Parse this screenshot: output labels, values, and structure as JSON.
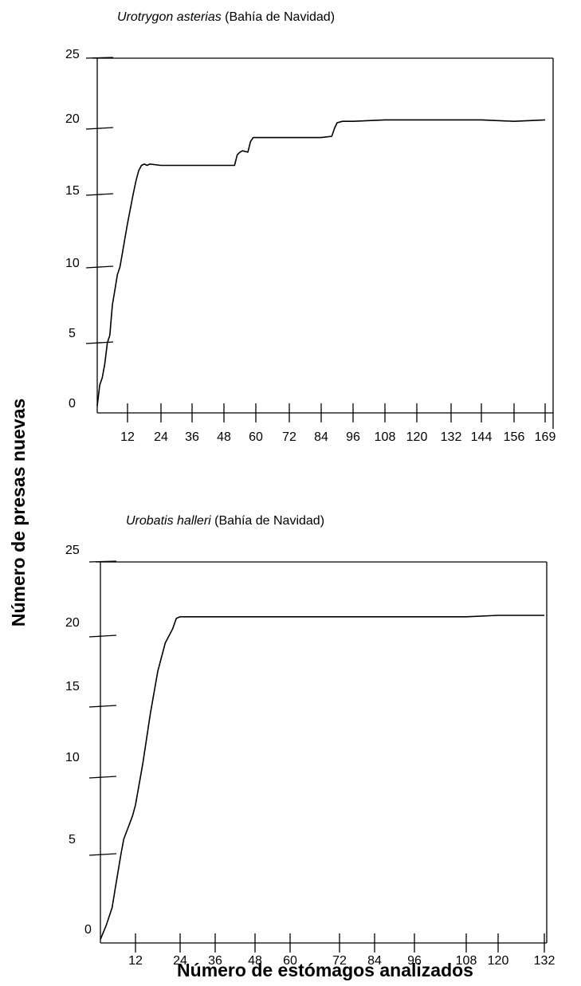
{
  "ylabel": "Número de presas nuevas",
  "xlabel": "Número de estómagos analizados",
  "chart_data": [
    {
      "type": "line",
      "title_species": "Urotrygon asterias",
      "title_location": " (Bahía de Navidad)",
      "ylim": [
        0,
        25
      ],
      "yticks": [
        "0",
        "5",
        "10",
        "15",
        "20",
        "25"
      ],
      "xticks": [
        "12",
        "24",
        "36",
        "48",
        "60",
        "72",
        "84",
        "96",
        "108",
        "120",
        "132",
        "144",
        "156",
        "169"
      ],
      "series": [
        {
          "x": [
            0,
            1,
            2,
            3,
            4,
            5,
            6,
            7,
            8,
            9,
            10,
            11,
            12,
            13,
            14,
            15,
            16,
            17,
            18,
            19,
            20,
            24,
            30,
            36,
            42,
            48,
            52,
            53,
            54,
            55,
            57,
            58,
            59,
            60,
            66,
            72,
            78,
            84,
            88,
            89,
            90,
            92,
            96,
            108,
            120,
            132,
            144,
            156,
            169
          ],
          "y": [
            0.5,
            2.0,
            2.5,
            3.5,
            5.0,
            5.5,
            7.5,
            8.5,
            9.5,
            10.0,
            11.0,
            12.0,
            13.0,
            14.0,
            15.0,
            16.0,
            16.8,
            17.2,
            17.3,
            17.2,
            17.3,
            17.2,
            17.2,
            17.2,
            17.2,
            17.2,
            17.2,
            18.0,
            18.2,
            18.3,
            18.2,
            19.0,
            19.3,
            19.3,
            19.3,
            19.3,
            19.3,
            19.3,
            19.4,
            20.0,
            20.4,
            20.5,
            20.5,
            20.6,
            20.6,
            20.6,
            20.6,
            20.5,
            20.6
          ]
        }
      ]
    },
    {
      "type": "line",
      "title_species": "Urobatis halleri",
      "title_location": " (Bahía de Navidad)",
      "ylim": [
        0,
        25
      ],
      "yticks": [
        "0",
        "5",
        "10",
        "15",
        "20",
        "25"
      ],
      "xticks": [
        "12",
        "24",
        "36",
        "48",
        "60",
        "72",
        "84",
        "96",
        "108",
        "120",
        "132"
      ],
      "series": [
        {
          "x": [
            0,
            2,
            3,
            4,
            5,
            6,
            7,
            8,
            9,
            10,
            11,
            12,
            14,
            16,
            18,
            20,
            22,
            23,
            24,
            25,
            36,
            48,
            60,
            72,
            84,
            96,
            108,
            120,
            132
          ],
          "y": [
            0.2,
            1.0,
            1.5,
            2.0,
            3.0,
            4.0,
            5.0,
            6.0,
            6.5,
            7.0,
            7.5,
            8.2,
            11.0,
            14.5,
            17.5,
            19.5,
            20.5,
            21.2,
            21.3,
            21.3,
            21.3,
            21.3,
            21.3,
            21.3,
            21.3,
            21.3,
            21.3,
            21.4,
            21.4
          ]
        }
      ]
    }
  ]
}
